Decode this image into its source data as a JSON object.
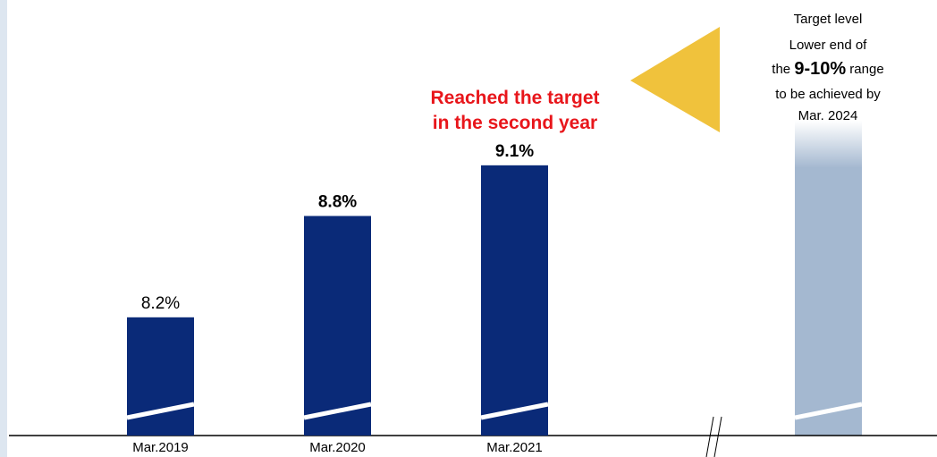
{
  "chart_data": {
    "type": "bar",
    "categories": [
      "Mar.2019",
      "Mar.2020",
      "Mar.2021"
    ],
    "values": [
      8.2,
      8.8,
      9.1
    ],
    "value_labels": [
      "8.2%",
      "8.8%",
      "9.1%"
    ],
    "color": "#0a2a78",
    "ylim": [
      7.5,
      10.1
    ],
    "annotation": "Reached the target\nin the second year",
    "target_text": [
      "Target level",
      "Lower end of",
      "the ",
      "9-10%",
      " range",
      "to be achieved by",
      "Mar. 2024"
    ]
  }
}
